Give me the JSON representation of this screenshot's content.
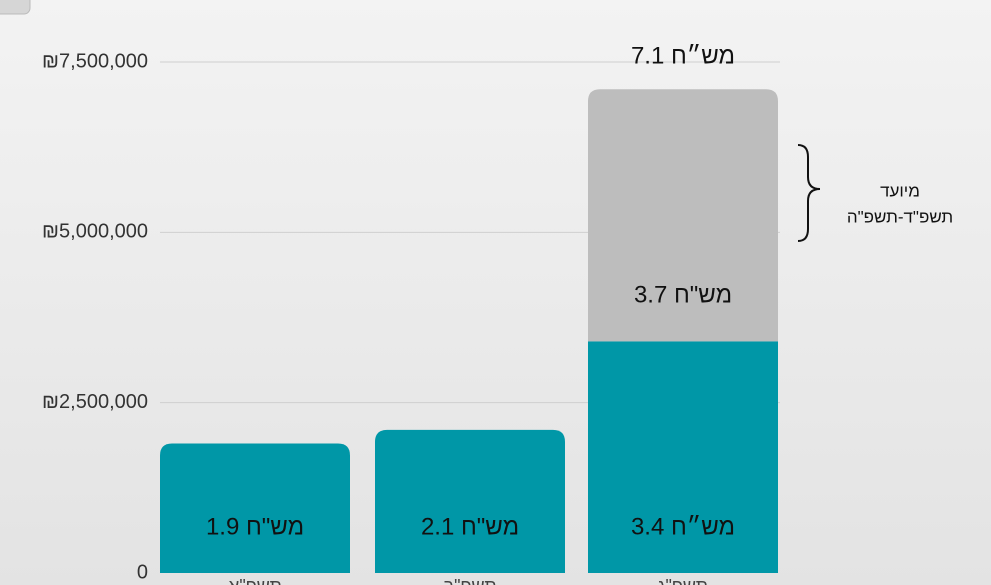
{
  "chart_data": {
    "type": "stacked-bar",
    "categories": [
      "תשפ\"א",
      "תשפ\"ב",
      "תשפ\"ג"
    ],
    "series": [
      {
        "color": "#0097a7",
        "values": [
          1900000,
          2100000,
          3400000
        ],
        "value_labels": [
          "1.9 מש\"ח",
          "2.1 מש\"ח",
          "3.4 מש״ח"
        ]
      },
      {
        "color": "#bdbdbd",
        "values": [
          null,
          null,
          3700000
        ],
        "value_labels": [
          null,
          null,
          "3.7 מש\"ח"
        ]
      }
    ],
    "totals": [
      null,
      null,
      {
        "value": 7100000,
        "label": "7.1 מש״ח"
      }
    ],
    "annotation": [
      "מיועד",
      "תשפ\"ד-תשפ\"ה"
    ],
    "ylim": [
      0,
      7500000
    ],
    "yticks": [
      0,
      {
        "value": 2500000,
        "label": "₪2,500,000"
      },
      {
        "value": 5000000,
        "label": "₪5,000,000"
      },
      {
        "value": 7500000,
        "label": "₪7,500,000"
      }
    ],
    "grid": true
  }
}
